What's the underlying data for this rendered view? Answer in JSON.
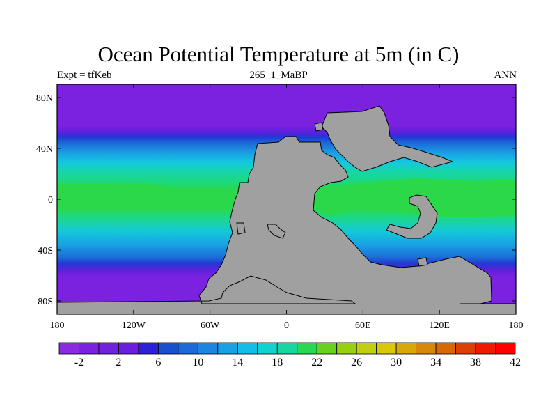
{
  "title": "Ocean Potential Temperature at 5m (in C)",
  "subtitle_left": "Expt = tfKeb",
  "subtitle_center": "265_1_MaBP",
  "subtitle_right": "ANN",
  "y_ticks": [
    "80N",
    "40N",
    "0",
    "40S",
    "80S"
  ],
  "x_ticks": [
    "180",
    "120W",
    "60W",
    "0",
    "60E",
    "120E",
    "180"
  ],
  "colorbar": {
    "labels": [
      "-2",
      "2",
      "6",
      "10",
      "14",
      "18",
      "22",
      "26",
      "30",
      "34",
      "38",
      "42"
    ],
    "colors": [
      "#8a2be2",
      "#7b22e0",
      "#7122dd",
      "#6a1fdd",
      "#2e20d6",
      "#1850d0",
      "#1c6ad8",
      "#1c85e0",
      "#18a2e6",
      "#12bde8",
      "#12d2d0",
      "#18d6a0",
      "#28d850",
      "#6ad020",
      "#98d010",
      "#c0d010",
      "#d8c808",
      "#d8a808",
      "#d88808",
      "#d86806",
      "#dd4004",
      "#ee1a02",
      "#ff0000"
    ]
  },
  "land_color": "#a0a0a0"
}
